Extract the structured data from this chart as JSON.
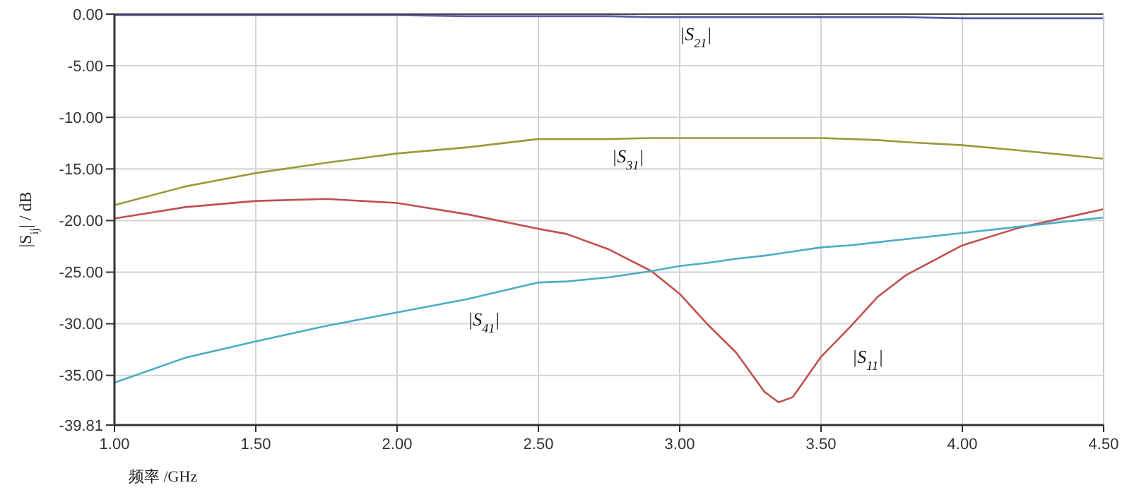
{
  "chart_data": {
    "type": "line",
    "xlabel": "频率 /GHz",
    "ylabel": "|S$_{ij}$| / dB",
    "x": [
      1.0,
      1.25,
      1.5,
      1.75,
      2.0,
      2.25,
      2.5,
      2.6,
      2.75,
      2.9,
      3.0,
      3.1,
      3.2,
      3.3,
      3.35,
      3.4,
      3.5,
      3.6,
      3.7,
      3.8,
      4.0,
      4.2,
      4.5
    ],
    "series": [
      {
        "name": "|S$_{21}$|",
        "color": "#5a5aa8",
        "values": [
          -0.1,
          -0.1,
          -0.1,
          -0.1,
          -0.1,
          -0.2,
          -0.2,
          -0.2,
          -0.2,
          -0.3,
          -0.3,
          -0.3,
          -0.3,
          -0.3,
          -0.3,
          -0.3,
          -0.3,
          -0.3,
          -0.3,
          -0.3,
          -0.4,
          -0.4,
          -0.4
        ]
      },
      {
        "name": "|S$_{31}$|",
        "color": "#9a9a3a",
        "values": [
          -18.5,
          -16.7,
          -15.4,
          -14.4,
          -13.5,
          -12.9,
          -12.1,
          -12.1,
          -12.1,
          -12.0,
          -12.0,
          -12.0,
          -12.0,
          -12.0,
          -12.0,
          -12.0,
          -12.0,
          -12.1,
          -12.2,
          -12.4,
          -12.7,
          -13.2,
          -14.0
        ]
      },
      {
        "name": "|S$_{11}$|",
        "color": "#c0504d",
        "values": [
          -19.8,
          -18.7,
          -18.1,
          -17.9,
          -18.3,
          -19.4,
          -20.8,
          -21.3,
          -22.8,
          -24.9,
          -27.1,
          -30.1,
          -32.8,
          -36.6,
          -37.6,
          -37.1,
          -33.2,
          -30.4,
          -27.4,
          -25.3,
          -22.4,
          -20.7,
          -18.9
        ]
      },
      {
        "name": "|S$_{41}$|",
        "color": "#4bacc6",
        "values": [
          -35.7,
          -33.3,
          -31.7,
          -30.2,
          -28.9,
          -27.6,
          -26.0,
          -25.9,
          -25.5,
          -24.9,
          -24.4,
          -24.1,
          -23.7,
          -23.4,
          -23.2,
          -23.0,
          -22.6,
          -22.4,
          -22.1,
          -21.8,
          -21.2,
          -20.6,
          -19.7
        ]
      }
    ],
    "xlim": [
      1.0,
      4.5
    ],
    "xticks": [
      {
        "value": 1.0,
        "label": "1.00"
      },
      {
        "value": 1.5,
        "label": "1.50"
      },
      {
        "value": 2.0,
        "label": "2.00"
      },
      {
        "value": 2.5,
        "label": "2.50"
      },
      {
        "value": 3.0,
        "label": "3.00"
      },
      {
        "value": 3.5,
        "label": "3.50"
      },
      {
        "value": 4.0,
        "label": "4.00"
      },
      {
        "value": 4.5,
        "label": "4.50"
      }
    ],
    "ylim": [
      -39.81,
      0
    ],
    "yticks": [
      {
        "value": 0,
        "label": "0.00"
      },
      {
        "value": -5,
        "label": "-5.00"
      },
      {
        "value": -10,
        "label": "-10.00"
      },
      {
        "value": -15,
        "label": "-15.00"
      },
      {
        "value": -20,
        "label": "-20.00"
      },
      {
        "value": -25,
        "label": "-25.00"
      },
      {
        "value": -30,
        "label": "-30.00"
      },
      {
        "value": -35,
        "label": "-35.00"
      },
      {
        "value": -39.81,
        "label": "-39.81"
      }
    ],
    "grid": true
  }
}
